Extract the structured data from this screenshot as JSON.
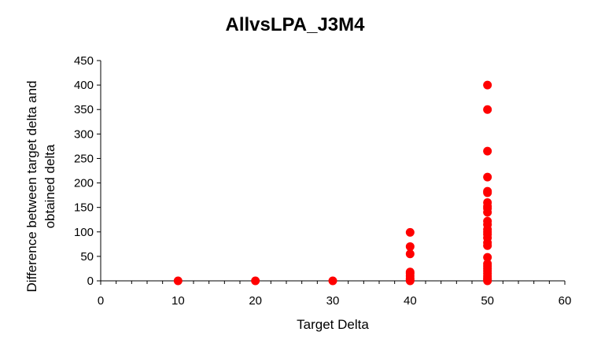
{
  "chart_data": {
    "type": "scatter",
    "title": "AllvsLPA_J3M4",
    "xlabel": "Target Delta",
    "ylabel": "Difference between target delta and obtained delta",
    "xlim": [
      0,
      60
    ],
    "ylim": [
      0,
      450
    ],
    "x_ticks": [
      0,
      10,
      20,
      30,
      40,
      50,
      60
    ],
    "y_ticks": [
      0,
      50,
      100,
      150,
      200,
      250,
      300,
      350,
      400,
      450
    ],
    "grid": false,
    "legend": "none",
    "series": [
      {
        "color": "#ff0000",
        "points": [
          {
            "x": 10,
            "y": 0
          },
          {
            "x": 20,
            "y": 0
          },
          {
            "x": 30,
            "y": 0
          },
          {
            "x": 40,
            "y": 0
          },
          {
            "x": 40,
            "y": 2
          },
          {
            "x": 40,
            "y": 5
          },
          {
            "x": 40,
            "y": 10
          },
          {
            "x": 40,
            "y": 15
          },
          {
            "x": 40,
            "y": 18
          },
          {
            "x": 40,
            "y": 55
          },
          {
            "x": 40,
            "y": 70
          },
          {
            "x": 40,
            "y": 99
          },
          {
            "x": 50,
            "y": 0
          },
          {
            "x": 50,
            "y": 3
          },
          {
            "x": 50,
            "y": 6
          },
          {
            "x": 50,
            "y": 10
          },
          {
            "x": 50,
            "y": 15
          },
          {
            "x": 50,
            "y": 20
          },
          {
            "x": 50,
            "y": 25
          },
          {
            "x": 50,
            "y": 30
          },
          {
            "x": 50,
            "y": 35
          },
          {
            "x": 50,
            "y": 48
          },
          {
            "x": 50,
            "y": 72
          },
          {
            "x": 50,
            "y": 78
          },
          {
            "x": 50,
            "y": 88
          },
          {
            "x": 50,
            "y": 95
          },
          {
            "x": 50,
            "y": 100
          },
          {
            "x": 50,
            "y": 105
          },
          {
            "x": 50,
            "y": 115
          },
          {
            "x": 50,
            "y": 122
          },
          {
            "x": 50,
            "y": 140
          },
          {
            "x": 50,
            "y": 148
          },
          {
            "x": 50,
            "y": 152
          },
          {
            "x": 50,
            "y": 160
          },
          {
            "x": 50,
            "y": 180
          },
          {
            "x": 50,
            "y": 183
          },
          {
            "x": 50,
            "y": 212
          },
          {
            "x": 50,
            "y": 265
          },
          {
            "x": 50,
            "y": 350
          },
          {
            "x": 50,
            "y": 400
          }
        ]
      }
    ]
  }
}
